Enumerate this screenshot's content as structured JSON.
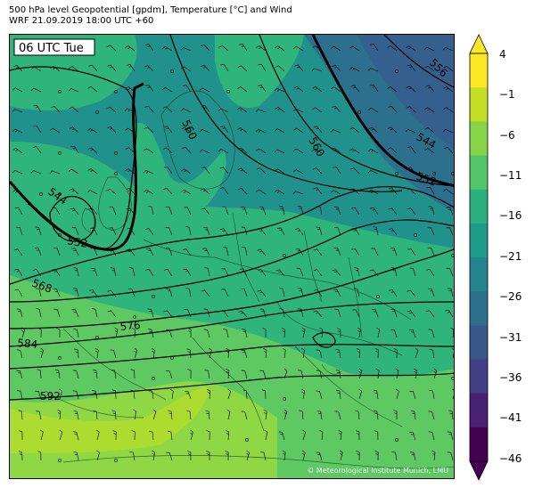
{
  "header": {
    "title": "500 hPa level Geopotential [gpdm], Temperature [°C] and Wind",
    "subtitle": "WRF 21.09.2019 18:00 UTC +60"
  },
  "map": {
    "time_label": "06 UTC Tue",
    "copyright": "© Meteorological Institute Munich, LMU",
    "contour_labels": [
      "560",
      "560",
      "556",
      "544",
      "552",
      "544",
      "552",
      "568",
      "576",
      "584",
      "592"
    ]
  },
  "colorbar": {
    "ticks": [
      "4",
      "−1",
      "−6",
      "−11",
      "−16",
      "−21",
      "−26",
      "−31",
      "−36",
      "−41",
      "−46"
    ],
    "colors": [
      "#fde725",
      "#c2df23",
      "#86d549",
      "#52c569",
      "#2ab07f",
      "#1e9b8a",
      "#25858e",
      "#2d708e",
      "#38588c",
      "#433e85",
      "#482173",
      "#440154"
    ]
  },
  "colors": {
    "cold": "#355f8d",
    "cool": "#21918c",
    "mid": "#2fb47c",
    "warm": "#5ec962",
    "warmer": "#8fd744",
    "hot": "#addc30"
  }
}
